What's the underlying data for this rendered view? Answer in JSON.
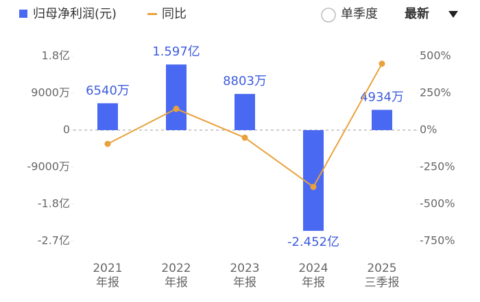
{
  "controls": {
    "period": "单季度",
    "sort": "最新"
  },
  "chart_data": {
    "type": "bar",
    "categories": [
      [
        "2021",
        "年报"
      ],
      [
        "2022",
        "年报"
      ],
      [
        "2023",
        "年报"
      ],
      [
        "2024",
        "年报"
      ],
      [
        "2025",
        "三季报"
      ]
    ],
    "series": [
      {
        "name": "归母净利润(元)",
        "type": "bar",
        "color": "#4a69f2",
        "values": [
          65400000,
          159700000,
          88030000,
          -245200000,
          49340000
        ],
        "value_labels": [
          "6540万",
          "1.597亿",
          "8803万",
          "-2.452亿",
          "4934万"
        ]
      },
      {
        "name": "同比",
        "type": "line",
        "axis": "y2",
        "color": "#e9a23b",
        "values": [
          -93,
          144,
          -51,
          -384,
          449
        ]
      }
    ],
    "ylim": [
      -270000000,
      180000000
    ],
    "yticks": [
      {
        "value": 180000000,
        "label": "1.8亿"
      },
      {
        "value": 90000000,
        "label": "9000万"
      },
      0,
      {
        "value": -90000000,
        "label": "-9000万"
      },
      {
        "value": -180000000,
        "label": "-1.8亿"
      },
      {
        "value": -270000000,
        "label": "-2.7亿"
      }
    ],
    "y2lim": [
      -750,
      500
    ],
    "y2ticks": [
      {
        "value": 500,
        "label": "500%"
      },
      {
        "value": 250,
        "label": "250%"
      },
      {
        "value": 0,
        "label": "0%"
      },
      {
        "value": -250,
        "label": "-250%"
      },
      {
        "value": -500,
        "label": "-500%"
      },
      {
        "value": -750,
        "label": "-750%"
      }
    ]
  }
}
